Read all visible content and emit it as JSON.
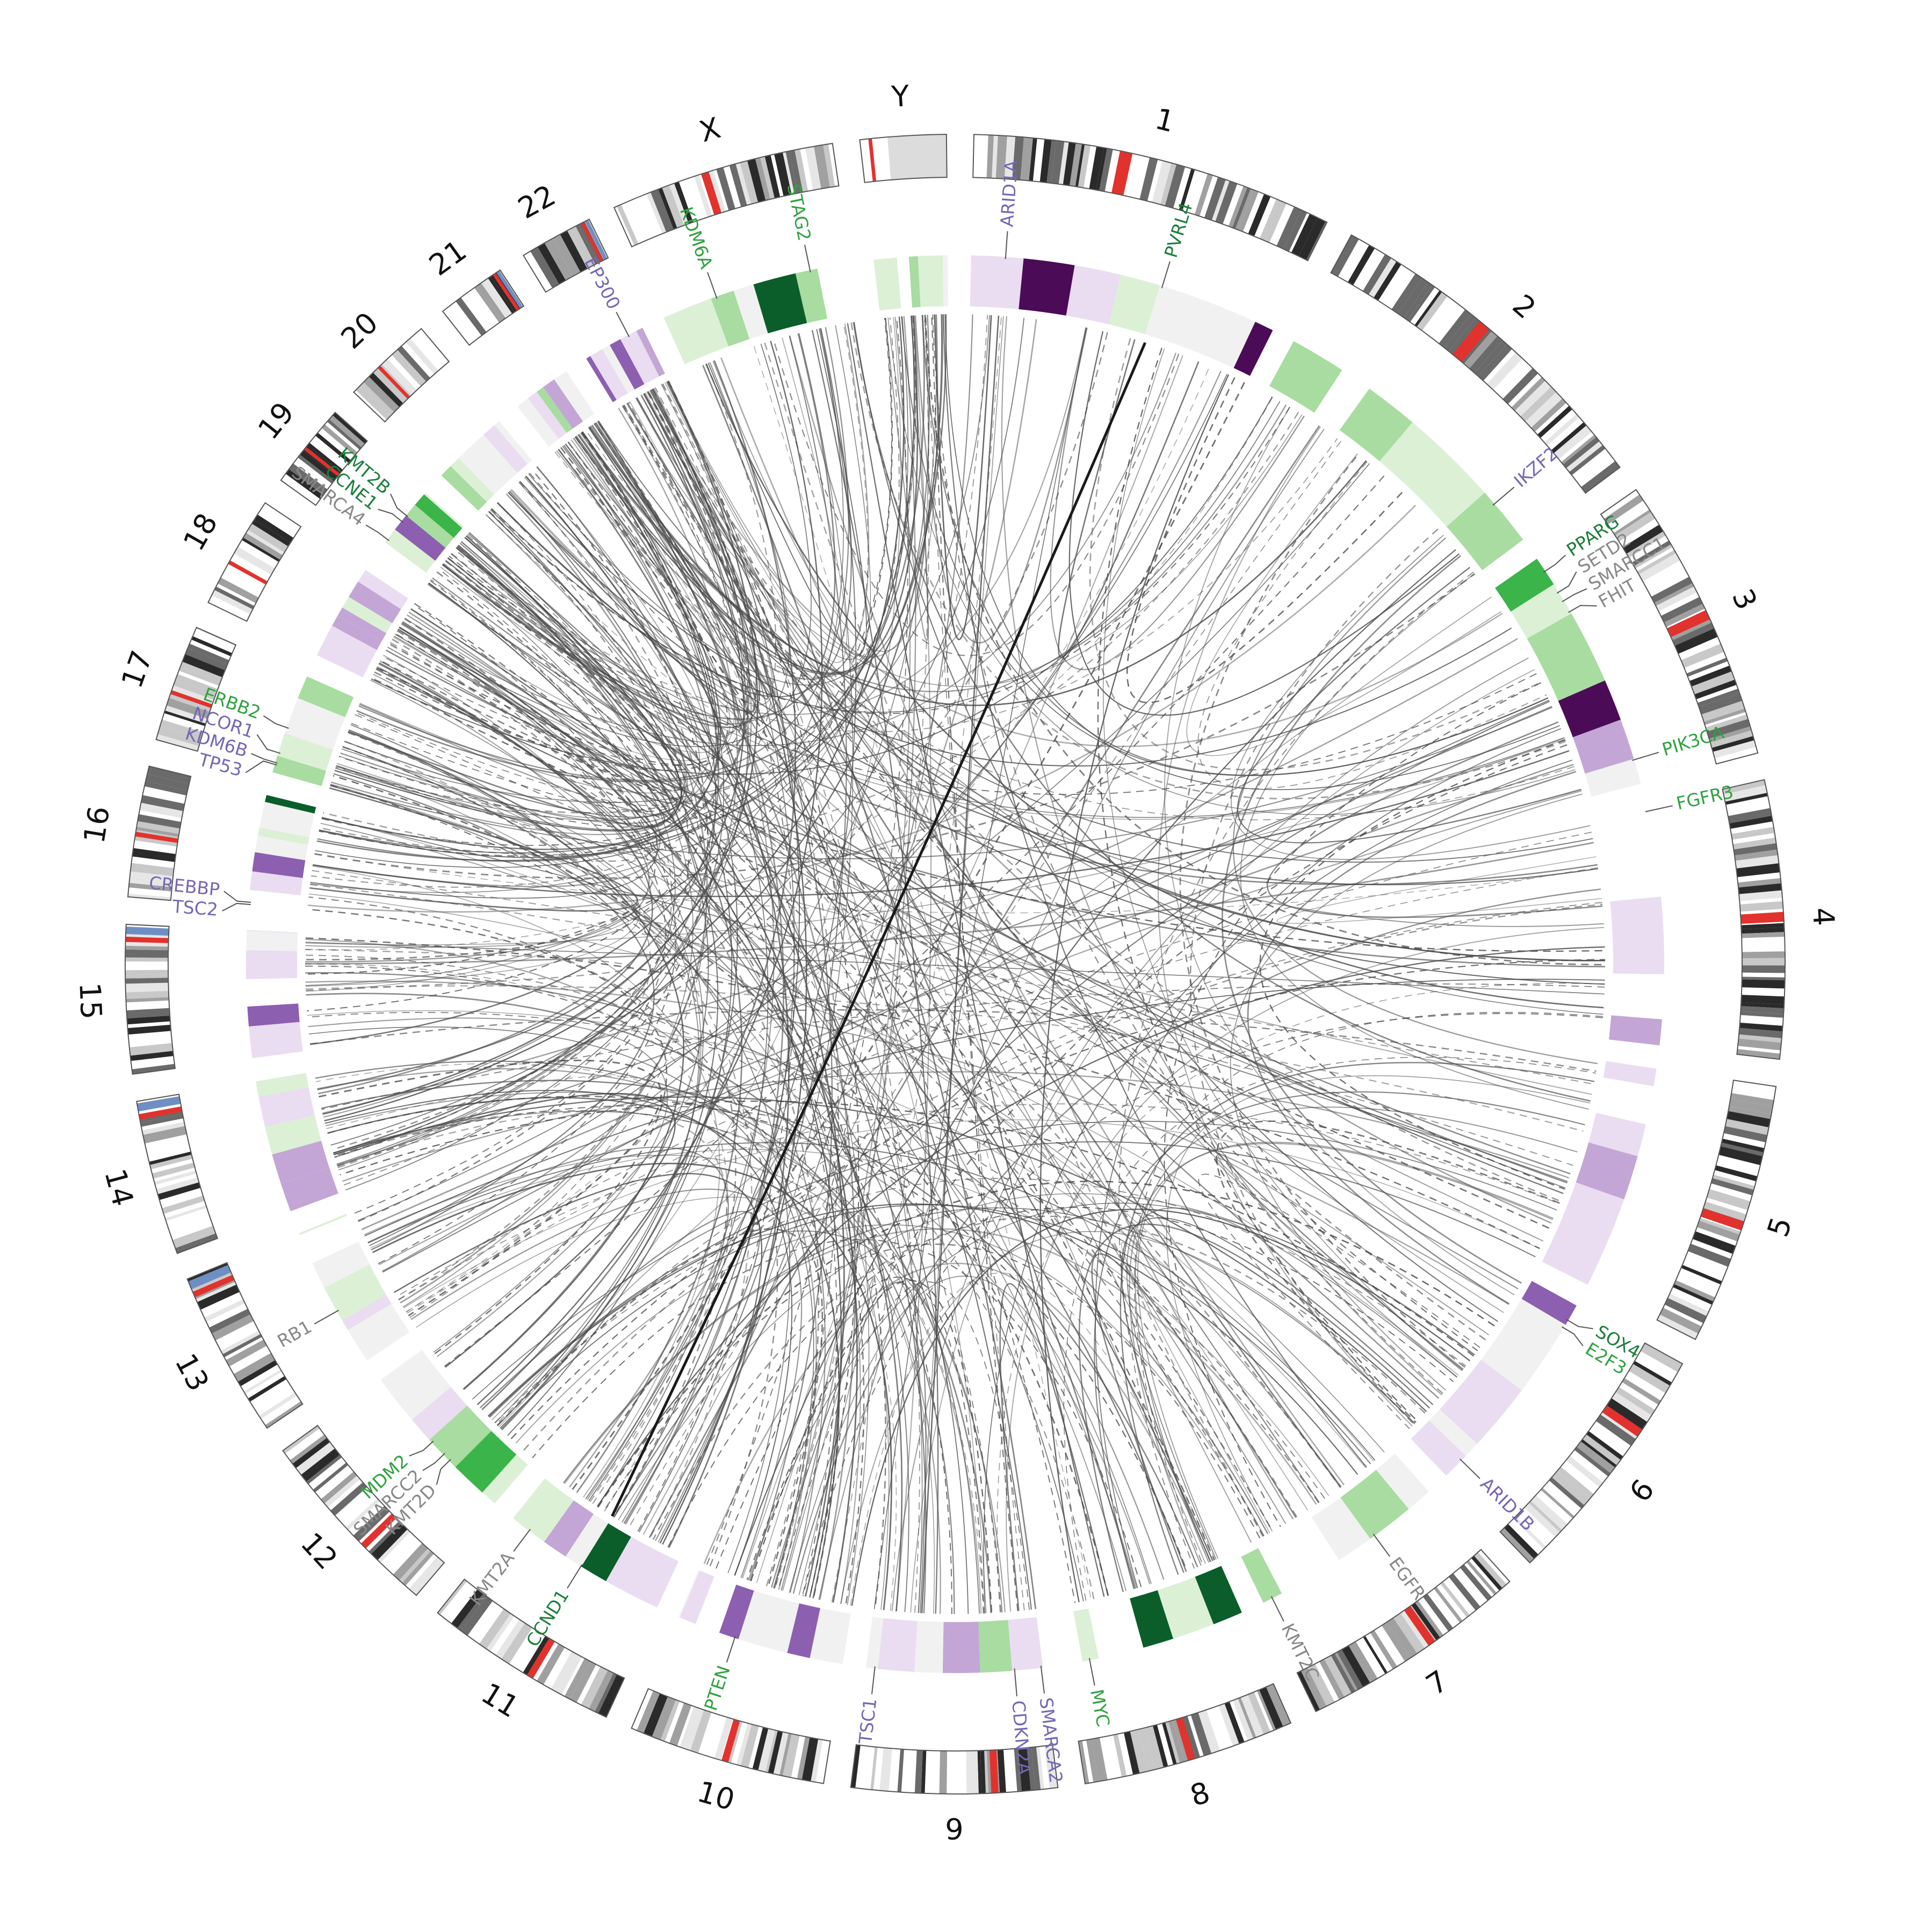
{
  "colors": {
    "gain_dark": "#0b5e2a",
    "gain_mid": "#3bb44a",
    "gain_light": "#a8dca0",
    "gain_pale": "#dcf0d6",
    "loss_dark": "#4b0b57",
    "loss_mid": "#8c5fb0",
    "loss_light": "#c3a6d6",
    "loss_pale": "#eadcf1",
    "neutral_pale": "#f1f1f1",
    "label_purple": "#7567b5",
    "label_green": "#2fa23f",
    "label_darkgreen": "#1b7f3b",
    "label_grey": "#888888",
    "centromere": "#e2322d",
    "acrocentric": "#6e8fc3"
  },
  "chromosomes": [
    {
      "name": "1",
      "length": 249
    },
    {
      "name": "2",
      "length": 243
    },
    {
      "name": "3",
      "length": 198
    },
    {
      "name": "4",
      "length": 191
    },
    {
      "name": "5",
      "length": 181
    },
    {
      "name": "6",
      "length": 171
    },
    {
      "name": "7",
      "length": 159
    },
    {
      "name": "8",
      "length": 146
    },
    {
      "name": "9",
      "length": 141
    },
    {
      "name": "10",
      "length": 136
    },
    {
      "name": "11",
      "length": 135
    },
    {
      "name": "12",
      "length": 134
    },
    {
      "name": "13",
      "length": 115
    },
    {
      "name": "14",
      "length": 107
    },
    {
      "name": "15",
      "length": 102
    },
    {
      "name": "16",
      "length": 90
    },
    {
      "name": "17",
      "length": 81
    },
    {
      "name": "18",
      "length": 78
    },
    {
      "name": "19",
      "length": 59
    },
    {
      "name": "20",
      "length": 63
    },
    {
      "name": "21",
      "length": 48
    },
    {
      "name": "22",
      "length": 51
    },
    {
      "name": "X",
      "length": 155
    },
    {
      "name": "Y",
      "length": 59
    }
  ],
  "genes": [
    {
      "name": "PVRL4",
      "chr": "1",
      "pos": 0.62,
      "color": "darkgreen"
    },
    {
      "name": "ARID1A",
      "chr": "1",
      "pos": 0.11,
      "color": "purple"
    },
    {
      "name": "IKZF2",
      "chr": "2",
      "pos": 0.85,
      "color": "purple"
    },
    {
      "name": "PPARG",
      "chr": "3",
      "pos": 0.06,
      "color": "darkgreen"
    },
    {
      "name": "SETD2",
      "chr": "3",
      "pos": 0.16,
      "color": "grey"
    },
    {
      "name": "SMARCC1",
      "chr": "3",
      "pos": 0.2,
      "color": "grey"
    },
    {
      "name": "FHIT",
      "chr": "3",
      "pos": 0.25,
      "color": "grey"
    },
    {
      "name": "PIK3CA",
      "chr": "3",
      "pos": 0.9,
      "color": "green"
    },
    {
      "name": "FGFR3",
      "chr": "4",
      "pos": 0.02,
      "color": "green"
    },
    {
      "name": "E2F3",
      "chr": "6",
      "pos": 0.12,
      "color": "green"
    },
    {
      "name": "SOX4",
      "chr": "6",
      "pos": 0.08,
      "color": "darkgreen"
    },
    {
      "name": "ARID1B",
      "chr": "6",
      "pos": 0.9,
      "color": "purple"
    },
    {
      "name": "EGFR",
      "chr": "7",
      "pos": 0.35,
      "color": "grey"
    },
    {
      "name": "KMT2C",
      "chr": "7",
      "pos": 0.95,
      "color": "grey"
    },
    {
      "name": "MYC",
      "chr": "8",
      "pos": 0.87,
      "color": "green"
    },
    {
      "name": "SMARCA2",
      "chr": "9",
      "pos": 0.01,
      "color": "purple"
    },
    {
      "name": "CDKN2A",
      "chr": "9",
      "pos": 0.16,
      "color": "purple"
    },
    {
      "name": "TSC1",
      "chr": "9",
      "pos": 0.95,
      "color": "purple"
    },
    {
      "name": "PTEN",
      "chr": "10",
      "pos": 0.65,
      "color": "green"
    },
    {
      "name": "CCND1",
      "chr": "11",
      "pos": 0.51,
      "color": "darkgreen"
    },
    {
      "name": "KMT2A",
      "chr": "11",
      "pos": 0.88,
      "color": "grey"
    },
    {
      "name": "KMT2D",
      "chr": "12",
      "pos": 0.37,
      "color": "grey"
    },
    {
      "name": "SMARCC2",
      "chr": "12",
      "pos": 0.42,
      "color": "grey"
    },
    {
      "name": "MDM2",
      "chr": "12",
      "pos": 0.52,
      "color": "green"
    },
    {
      "name": "RB1",
      "chr": "13",
      "pos": 0.4,
      "color": "grey"
    },
    {
      "name": "TSC2",
      "chr": "16",
      "pos": 0.02,
      "color": "purple"
    },
    {
      "name": "CREBBP",
      "chr": "16",
      "pos": 0.04,
      "color": "purple"
    },
    {
      "name": "TP53",
      "chr": "17",
      "pos": 0.08,
      "color": "purple"
    },
    {
      "name": "KDM6B",
      "chr": "17",
      "pos": 0.1,
      "color": "purple"
    },
    {
      "name": "NCOR1",
      "chr": "17",
      "pos": 0.2,
      "color": "purple"
    },
    {
      "name": "ERBB2",
      "chr": "17",
      "pos": 0.46,
      "color": "green"
    },
    {
      "name": "SMARCA4",
      "chr": "19",
      "pos": 0.19,
      "color": "grey"
    },
    {
      "name": "CCNE1",
      "chr": "19",
      "pos": 0.5,
      "color": "darkgreen"
    },
    {
      "name": "KMT2B",
      "chr": "19",
      "pos": 0.6,
      "color": "darkgreen"
    },
    {
      "name": "EP300",
      "chr": "22",
      "pos": 0.75,
      "color": "purple"
    },
    {
      "name": "KDM6A",
      "chr": "X",
      "pos": 0.29,
      "color": "green"
    },
    {
      "name": "STAG2",
      "chr": "X",
      "pos": 0.79,
      "color": "green"
    }
  ]
}
